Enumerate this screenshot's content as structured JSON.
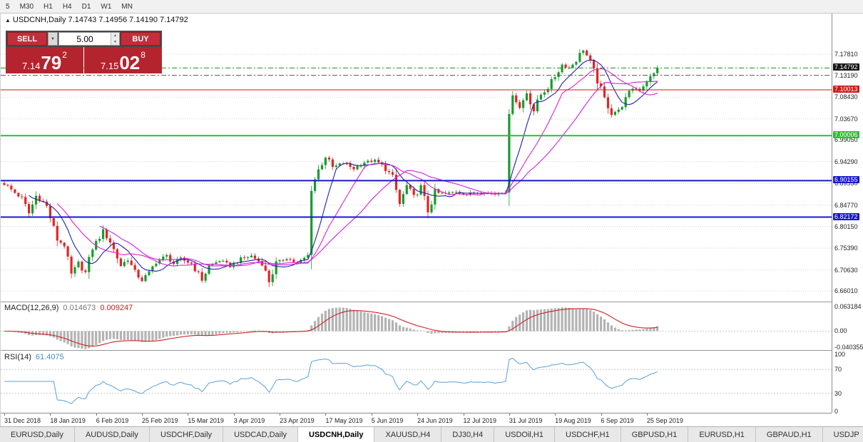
{
  "toolbar": {
    "timeframes": [
      "5",
      "M30",
      "H1",
      "H4",
      "D1",
      "W1",
      "MN"
    ]
  },
  "chart": {
    "title_marker": "▲",
    "title": "USDCNH,Daily 7.14743 7.14956 7.14190 7.14792",
    "axis_grid": [
      {
        "price": 7.1781,
        "label": "7.17810"
      },
      {
        "price": 7.1319,
        "label": "7.13190"
      },
      {
        "price": 7.0843,
        "label": "7.08430"
      },
      {
        "price": 7.0367,
        "label": "7.03670"
      },
      {
        "price": 6.9905,
        "label": "6.99050"
      },
      {
        "price": 6.9429,
        "label": "6.94290"
      },
      {
        "price": 6.8953,
        "label": "6.89530"
      },
      {
        "price": 6.8477,
        "label": "6.84770"
      },
      {
        "price": 6.8015,
        "label": "6.80150"
      },
      {
        "price": 6.7539,
        "label": "6.75390"
      },
      {
        "price": 6.7063,
        "label": "6.70630"
      },
      {
        "price": 6.6601,
        "label": "6.66010"
      }
    ],
    "lines": [
      {
        "price": 7.14792,
        "label": "7.14792",
        "color": "#17921f",
        "label_bg": "#141414",
        "style": "dashdot",
        "width": 1
      },
      {
        "price": 7.1319,
        "color": "#5a5a5a",
        "style": "dashdot",
        "width": 1
      },
      {
        "price": 7.10013,
        "label": "7.10013",
        "color": "#d01717",
        "label_bg": "#d01717",
        "style": "solid",
        "width": 1
      },
      {
        "price": 7.00006,
        "label": "7.00006",
        "color": "#2fbd2f",
        "label_bg": "#2fbd2f",
        "style": "solid",
        "width": 2
      },
      {
        "price": 6.90155,
        "label": "6.90155",
        "color": "#1717cb",
        "label_bg": "#1717cb",
        "style": "solid",
        "width": 2
      },
      {
        "price": 6.82172,
        "label": "6.82172",
        "color": "#1717cb",
        "label_bg": "#1717cb",
        "style": "solid",
        "width": 2
      }
    ]
  },
  "one_click": {
    "sell_label": "SELL",
    "buy_label": "BUY",
    "volume": "5.00",
    "bid": {
      "big": "7.14",
      "pips": "79",
      "sup": "2"
    },
    "ask": {
      "big": "7.15",
      "pips": "02",
      "sup": "8"
    }
  },
  "macd": {
    "name": "MACD(12,26,9)",
    "main_text": "0.014673",
    "signal_text": "0.009247",
    "range": [
      -0.048,
      0.075
    ],
    "axis": [
      {
        "v": 0.063184,
        "t": "0.063184"
      },
      {
        "v": 0,
        "t": "0.00"
      },
      {
        "v": -0.040355,
        "t": "-0.040355"
      }
    ]
  },
  "rsi": {
    "name": "RSI(14)",
    "value_text": "61.4075",
    "levels": [
      70,
      30
    ],
    "axis": [
      {
        "v": 100,
        "t": "100"
      },
      {
        "v": 70,
        "t": "70"
      },
      {
        "v": 30,
        "t": "30"
      },
      {
        "v": 0,
        "t": "0"
      }
    ]
  },
  "dates": {
    "step": 13,
    "labels": [
      "31 Dec 2018",
      "18 Jan 2019",
      "6 Feb 2019",
      "25 Feb 2019",
      "15 Mar 2019",
      "3 Apr 2019",
      "23 Apr 2019",
      "17 May 2019",
      "5 Jun 2019",
      "24 Jun 2019",
      "12 Jul 2019",
      "31 Jul 2019",
      "19 Aug 2019",
      "6 Sep 2019",
      "25 Sep 2019"
    ]
  },
  "tabs": {
    "active": "USDCNH,Daily",
    "items": [
      "EURUSD,Daily",
      "AUDUSD,Daily",
      "USDCHF,Daily",
      "USDCAD,Daily",
      "USDCNH,Daily",
      "XAUUSD,H4",
      "DJ30,H4",
      "USDOil,H1",
      "USDCHF,H1",
      "GBPUSD,H1",
      "EURUSD,H1",
      "GBPAUD,H1",
      "USDJP"
    ]
  },
  "chart_data": {
    "type": "candlestick",
    "symbol": "USDCNH",
    "period": "Daily",
    "current": {
      "open": 7.14743,
      "high": 7.14956,
      "low": 7.1419,
      "close": 7.14792
    },
    "bid": 7.14792,
    "ask": 7.15028,
    "indicators": {
      "macd": {
        "params": [
          12,
          26,
          9
        ],
        "main": 0.014673,
        "signal": 0.009247
      },
      "rsi": {
        "period": 14,
        "value": 61.4075
      }
    },
    "levels": [
      7.14792,
      7.10013,
      7.00006,
      6.90155,
      6.82172
    ],
    "bars": 186,
    "ylim": [
      6.637,
      7.267
    ],
    "colors": {
      "up": "#169b2f",
      "down": "#e32424",
      "ma_fast": "#2222aa",
      "ma_mid": "#dd22cc",
      "ma_slow": "#cc22dd",
      "macd_hist": "#b3b3b3",
      "macd_signal": "#d02020",
      "rsi": "#5aa0d6",
      "grid": "#d2d2d2"
    },
    "keyframes": [
      [
        0,
        6.895
      ],
      [
        3,
        6.875
      ],
      [
        5,
        6.863
      ],
      [
        7,
        6.83
      ],
      [
        9,
        6.868
      ],
      [
        11,
        6.855
      ],
      [
        12,
        6.845
      ],
      [
        15,
        6.773
      ],
      [
        17,
        6.76
      ],
      [
        19,
        6.695
      ],
      [
        21,
        6.72
      ],
      [
        23,
        6.7
      ],
      [
        25,
        6.755
      ],
      [
        28,
        6.79
      ],
      [
        30,
        6.768
      ],
      [
        33,
        6.716
      ],
      [
        35,
        6.73
      ],
      [
        37,
        6.7
      ],
      [
        39,
        6.684
      ],
      [
        41,
        6.7
      ],
      [
        43,
        6.725
      ],
      [
        46,
        6.737
      ],
      [
        48,
        6.72
      ],
      [
        50,
        6.73
      ],
      [
        53,
        6.72
      ],
      [
        56,
        6.685
      ],
      [
        58,
        6.715
      ],
      [
        61,
        6.727
      ],
      [
        64,
        6.715
      ],
      [
        67,
        6.73
      ],
      [
        70,
        6.737
      ],
      [
        73,
        6.72
      ],
      [
        75,
        6.682
      ],
      [
        77,
        6.72
      ],
      [
        80,
        6.733
      ],
      [
        83,
        6.72
      ],
      [
        86,
        6.738
      ],
      [
        87,
        6.885
      ],
      [
        89,
        6.925
      ],
      [
        91,
        6.955
      ],
      [
        93,
        6.93
      ],
      [
        96,
        6.94
      ],
      [
        99,
        6.928
      ],
      [
        102,
        6.942
      ],
      [
        105,
        6.945
      ],
      [
        107,
        6.935
      ],
      [
        110,
        6.91
      ],
      [
        112,
        6.85
      ],
      [
        114,
        6.89
      ],
      [
        116,
        6.865
      ],
      [
        118,
        6.888
      ],
      [
        120,
        6.835
      ],
      [
        122,
        6.875
      ],
      [
        125,
        6.873
      ],
      [
        128,
        6.877
      ],
      [
        131,
        6.872
      ],
      [
        135,
        6.877
      ],
      [
        139,
        6.872
      ],
      [
        142,
        6.878
      ],
      [
        143,
        7.04
      ],
      [
        144,
        7.095
      ],
      [
        146,
        7.06
      ],
      [
        148,
        7.095
      ],
      [
        150,
        7.055
      ],
      [
        152,
        7.09
      ],
      [
        154,
        7.105
      ],
      [
        156,
        7.13
      ],
      [
        158,
        7.155
      ],
      [
        160,
        7.148
      ],
      [
        162,
        7.165
      ],
      [
        164,
        7.19
      ],
      [
        166,
        7.16
      ],
      [
        168,
        7.12
      ],
      [
        170,
        7.08
      ],
      [
        172,
        7.05
      ],
      [
        174,
        7.055
      ],
      [
        176,
        7.08
      ],
      [
        178,
        7.105
      ],
      [
        180,
        7.1
      ],
      [
        182,
        7.12
      ],
      [
        184,
        7.135
      ],
      [
        185,
        7.14792
      ]
    ]
  }
}
